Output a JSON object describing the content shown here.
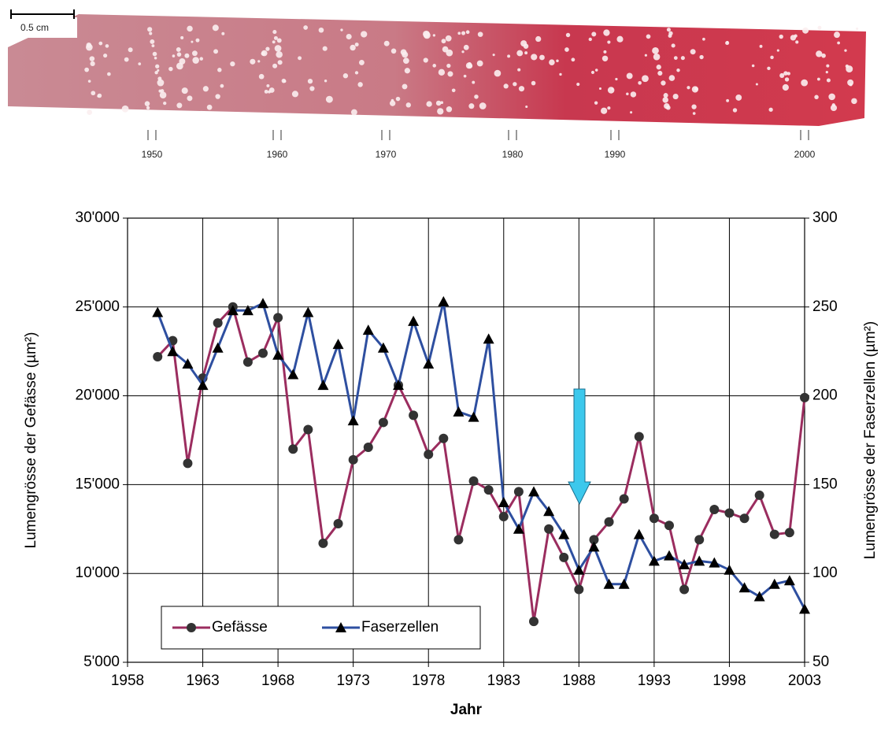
{
  "image": {
    "scale_label": "0.5 cm",
    "year_labels": [
      "1950",
      "1960",
      "1970",
      "1980",
      "1990",
      "2000"
    ]
  },
  "chart_data": {
    "type": "line",
    "x_label": "Jahr",
    "y_label": "Lumengrösse der Gefässe (µm²)",
    "y2_label": "Lumengrösse der Faserzellen (µm²)",
    "x": [
      1960,
      1961,
      1962,
      1963,
      1964,
      1965,
      1966,
      1967,
      1968,
      1969,
      1970,
      1971,
      1972,
      1973,
      1974,
      1975,
      1976,
      1977,
      1978,
      1979,
      1980,
      1981,
      1982,
      1983,
      1984,
      1985,
      1986,
      1987,
      1988,
      1989,
      1990,
      1991,
      1992,
      1993,
      1994,
      1995,
      1996,
      1997,
      1998,
      1999,
      2000,
      2001,
      2002,
      2003
    ],
    "series": [
      {
        "name": "Gefässe",
        "color": "#9b2d5f",
        "marker": "circle",
        "axis": "y",
        "values": [
          22200,
          23100,
          16200,
          21000,
          24100,
          25000,
          21900,
          22400,
          24400,
          17000,
          18100,
          11700,
          12800,
          16400,
          17100,
          18500,
          20600,
          18900,
          16700,
          17600,
          11900,
          15200,
          14700,
          13200,
          14600,
          7300,
          12500,
          10900,
          9100,
          11900,
          12900,
          14200,
          17700,
          13100,
          12700,
          9100,
          11900,
          13600,
          13400,
          13100,
          14400,
          12200,
          12300,
          19900
        ]
      },
      {
        "name": "Faserzellen",
        "color": "#2e4fa0",
        "marker": "triangle",
        "axis": "y2",
        "values": [
          247,
          225,
          218,
          206,
          227,
          248,
          248,
          252,
          223,
          212,
          247,
          206,
          229,
          186,
          237,
          227,
          206,
          242,
          218,
          253,
          191,
          188,
          232,
          140,
          125,
          146,
          135,
          122,
          102,
          115,
          94,
          94,
          122,
          107,
          110,
          105,
          107,
          106,
          102,
          92,
          87,
          94,
          96,
          80
        ]
      }
    ],
    "xlim": [
      1958,
      2003
    ],
    "xticks": [
      1958,
      1963,
      1968,
      1973,
      1978,
      1983,
      1988,
      1993,
      1998,
      2003
    ],
    "ylim": [
      5000,
      30000
    ],
    "yticks": [
      {
        "value": 5000,
        "label": "5'000"
      },
      {
        "value": 10000,
        "label": "10'000"
      },
      {
        "value": 15000,
        "label": "15'000"
      },
      {
        "value": 20000,
        "label": "20'000"
      },
      {
        "value": 25000,
        "label": "25'000"
      },
      {
        "value": 30000,
        "label": "30'000"
      }
    ],
    "y2lim": [
      50,
      300
    ],
    "y2ticks": [
      50,
      100,
      150,
      200,
      250,
      300
    ],
    "grid": true,
    "legend": "lower left"
  }
}
